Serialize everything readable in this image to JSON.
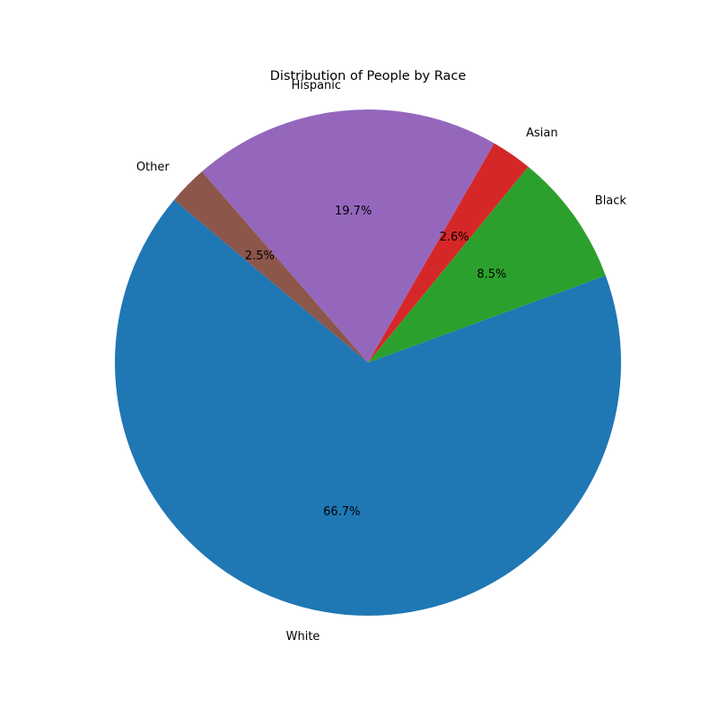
{
  "chart_data": {
    "type": "pie",
    "title": "Distribution of People by Race",
    "categories": [
      "White",
      "Black",
      "Asian",
      "Hispanic",
      "Other"
    ],
    "values": [
      66.7,
      8.5,
      2.6,
      19.7,
      2.5
    ],
    "value_labels": [
      "66.7%",
      "8.5%",
      "2.6%",
      "19.7%",
      "2.5%"
    ],
    "colors": [
      "#1f77b4",
      "#2ca02c",
      "#d62728",
      "#9467bd",
      "#8c564b"
    ],
    "start_angle_deg": 140,
    "direction": "counterclockwise",
    "legend": "none"
  }
}
